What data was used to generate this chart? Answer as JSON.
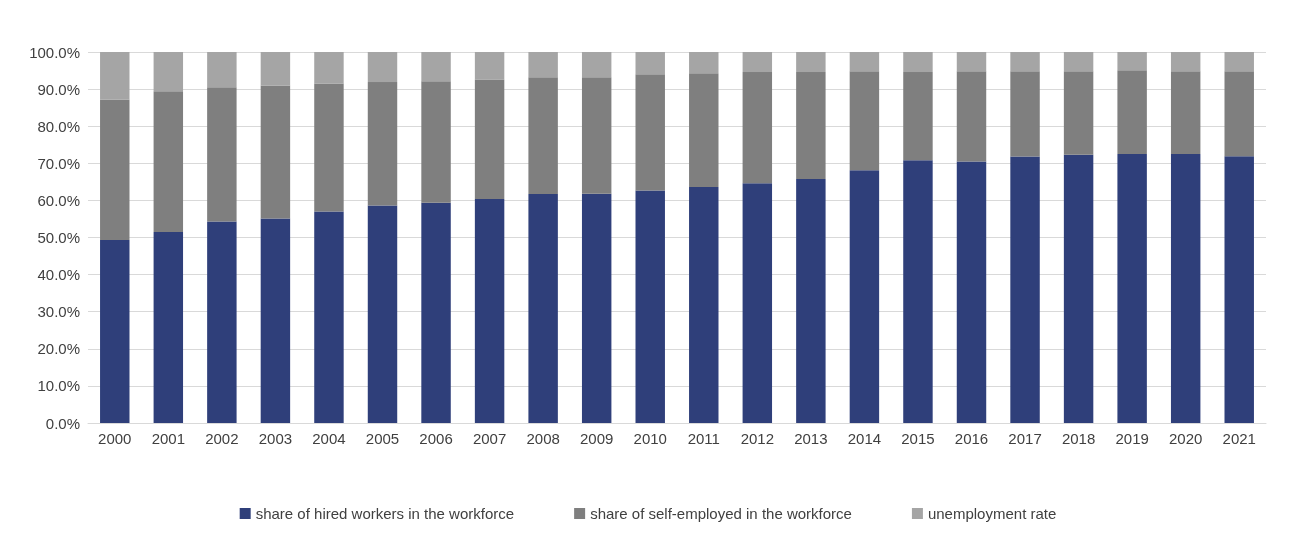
{
  "chart_data": {
    "type": "bar",
    "stacked": true,
    "categories": [
      "2000",
      "2001",
      "2002",
      "2003",
      "2004",
      "2005",
      "2006",
      "2007",
      "2008",
      "2009",
      "2010",
      "2011",
      "2012",
      "2013",
      "2014",
      "2015",
      "2016",
      "2017",
      "2018",
      "2019",
      "2020",
      "2021"
    ],
    "series": [
      {
        "name": "share of hired workers in the workforce",
        "color": "#2f3f7a",
        "values": [
          49.3,
          51.5,
          54.3,
          55.1,
          57.0,
          58.6,
          59.4,
          60.4,
          61.7,
          61.8,
          62.7,
          63.6,
          64.6,
          65.8,
          68.1,
          70.8,
          70.5,
          71.8,
          72.3,
          72.5,
          72.5,
          71.9
        ]
      },
      {
        "name": "share of self-employed in the workforce",
        "color": "#7f7f7f",
        "values": [
          37.9,
          37.9,
          36.2,
          35.9,
          34.5,
          33.3,
          32.7,
          32.1,
          31.5,
          31.4,
          31.3,
          30.7,
          30.0,
          28.8,
          26.7,
          23.8,
          24.3,
          23.0,
          22.5,
          22.6,
          22.3,
          22.9
        ]
      },
      {
        "name": "unemployment rate",
        "color": "#a5a5a5",
        "values": [
          12.8,
          10.6,
          9.5,
          9.0,
          8.5,
          8.1,
          7.9,
          7.5,
          6.8,
          6.8,
          6.0,
          5.7,
          5.4,
          5.4,
          5.2,
          5.4,
          5.2,
          5.2,
          5.2,
          4.9,
          5.2,
          5.2
        ]
      }
    ],
    "ylim": [
      0,
      100
    ],
    "yticks": [
      {
        "value": 0,
        "label": "0.0%"
      },
      {
        "value": 10,
        "label": "10.0%"
      },
      {
        "value": 20,
        "label": "20.0%"
      },
      {
        "value": 30,
        "label": "30.0%"
      },
      {
        "value": 40,
        "label": "40.0%"
      },
      {
        "value": 50,
        "label": "50.0%"
      },
      {
        "value": 60,
        "label": "60.0%"
      },
      {
        "value": 70,
        "label": "70.0%"
      },
      {
        "value": 80,
        "label": "80.0%"
      },
      {
        "value": 90,
        "label": "90.0%"
      },
      {
        "value": 100,
        "label": "100.0%"
      }
    ],
    "grid": "y",
    "legend": "bottom"
  }
}
